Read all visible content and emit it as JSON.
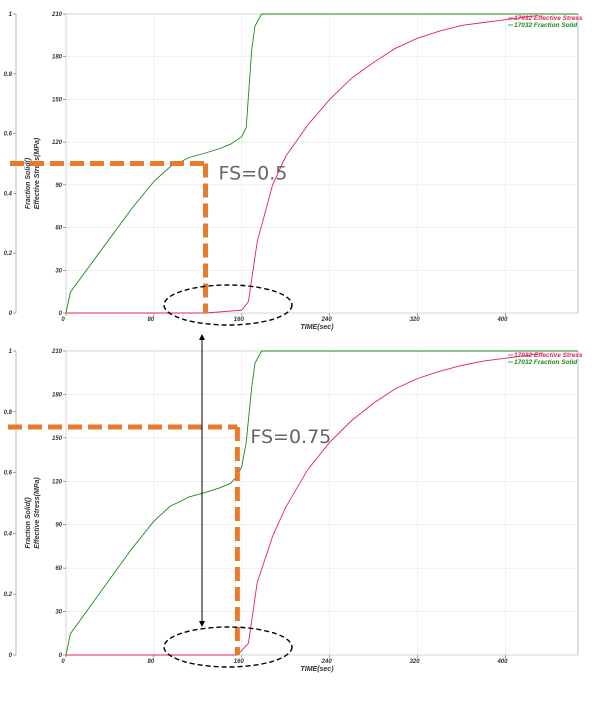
{
  "chart_data": [
    {
      "type": "line",
      "xlabel": "TIME(sec)",
      "ylabel_left": "Fraction Solid()",
      "ylabel_right": "Effective Stress(MPa)",
      "xlim": [
        0,
        466
      ],
      "x_ticks": [
        "0",
        "80",
        "160",
        "240",
        "320",
        "400"
      ],
      "y_stress_ticks": [
        "0",
        "30",
        "60",
        "90",
        "120",
        "150",
        "180",
        "210"
      ],
      "y_fs_ticks": [
        "0",
        "0.2",
        "0.4",
        "0.6",
        "0.8",
        "1"
      ],
      "legend": {
        "placement": "top-right"
      },
      "series": [
        {
          "name": "17032 Effective Stress",
          "color": "#e0245e",
          "axis": "stress",
          "x": [
            0,
            127,
            160,
            166,
            174,
            188,
            200,
            220,
            240,
            260,
            280,
            300,
            320,
            340,
            360,
            380,
            400,
            420,
            430
          ],
          "y": [
            0,
            0,
            2,
            8,
            50,
            90,
            110,
            132,
            150,
            165,
            176,
            186,
            193,
            198,
            202,
            204,
            206,
            208,
            209
          ]
        },
        {
          "name": "17032 Fraction Solid",
          "color": "#1a8a1a",
          "axis": "fs",
          "x": [
            0,
            4,
            20,
            40,
            60,
            80,
            95,
            104,
            112,
            127,
            140,
            150,
            160,
            164,
            169,
            172,
            178,
            466
          ],
          "y": [
            0,
            0.07,
            0.15,
            0.25,
            0.35,
            0.44,
            0.49,
            0.505,
            0.52,
            0.535,
            0.55,
            0.565,
            0.59,
            0.62,
            0.88,
            0.96,
            1.0,
            1.0
          ]
        }
      ],
      "annotations": [
        {
          "text": "FS=0.5",
          "color": "#e87a2c",
          "x": 127,
          "y_fs": 0.5
        }
      ]
    },
    {
      "type": "line",
      "xlabel": "TIME(sec)",
      "ylabel_left": "Fraction Solid()",
      "ylabel_right": "Effective Stress(MPa)",
      "xlim": [
        0,
        466
      ],
      "x_ticks": [
        "0",
        "80",
        "160",
        "240",
        "320",
        "400"
      ],
      "y_stress_ticks": [
        "0",
        "30",
        "60",
        "90",
        "120",
        "150",
        "180",
        "210"
      ],
      "y_fs_ticks": [
        "0",
        "0.2",
        "0.4",
        "0.6",
        "0.8",
        "1"
      ],
      "legend": {
        "placement": "top-right"
      },
      "series": [
        {
          "name": "17032 Effective Stress",
          "color": "#e0245e",
          "axis": "stress",
          "x": [
            0,
            156,
            166,
            174,
            188,
            200,
            220,
            240,
            260,
            280,
            300,
            320,
            340,
            360,
            380,
            400,
            420,
            430
          ],
          "y": [
            0,
            0,
            8,
            50,
            82,
            102,
            128,
            147,
            162,
            174,
            184,
            191,
            196,
            200,
            203,
            205,
            207,
            208
          ]
        },
        {
          "name": "17032 Fraction Solid",
          "color": "#1a8a1a",
          "axis": "fs",
          "x": [
            0,
            4,
            20,
            40,
            60,
            80,
            95,
            104,
            112,
            127,
            140,
            150,
            156,
            160,
            164,
            169,
            172,
            178,
            466
          ],
          "y": [
            0,
            0.07,
            0.15,
            0.25,
            0.35,
            0.44,
            0.49,
            0.505,
            0.52,
            0.535,
            0.55,
            0.565,
            0.59,
            0.62,
            0.7,
            0.88,
            0.96,
            1.0,
            1.0
          ]
        }
      ],
      "annotations": [
        {
          "text": "FS=0.75",
          "color": "#e87a2c",
          "x": 156,
          "y_fs": 0.75
        }
      ]
    }
  ]
}
